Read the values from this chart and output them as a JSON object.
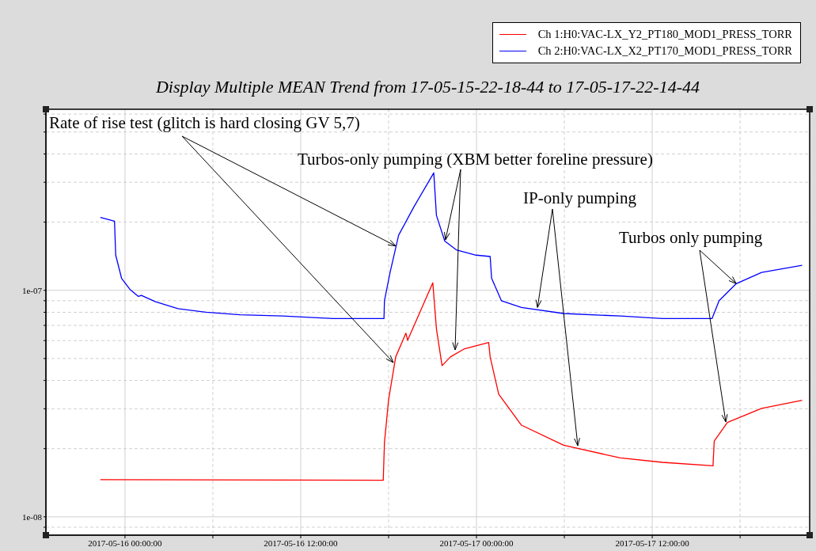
{
  "chart_data": {
    "type": "line",
    "title": "Display Multiple MEAN Trend from 17-05-15-22-18-44 to 17-05-17-22-14-44",
    "annotations": [
      {
        "text": "Rate of rise test (glitch is hard closing GV 5,7)",
        "x": "2017-05-16T18:29",
        "y": 1.57e-07
      },
      {
        "text": "Turbos-only pumping (XBM better foreline pressure)",
        "x": "2017-05-16T21:53",
        "y": 1.67e-07
      },
      {
        "text": "IP-only pumping",
        "x": "2017-05-17T04:10",
        "y": 8.4e-08
      },
      {
        "text": "Turbos only pumping",
        "x": "2017-05-17T17:44",
        "y": 1.07e-07
      }
    ],
    "log": "y",
    "grid": true,
    "legend": "top right",
    "line_style": "solid",
    "marker": "none",
    "xlim": [
      "2017-05-15T18:36",
      "2017-05-17T22:45"
    ],
    "xticks": [
      {
        "value": "2017-05-16T00:00",
        "label": "2017-05-16 00:00:00"
      },
      {
        "value": "2017-05-16T06:00",
        "label": null
      },
      {
        "value": "2017-05-16T12:00",
        "label": "2017-05-16 12:00:00"
      },
      {
        "value": "2017-05-16T18:00",
        "label": null
      },
      {
        "value": "2017-05-17T00:00",
        "label": "2017-05-17 00:00:00"
      },
      {
        "value": "2017-05-17T06:00",
        "label": null
      },
      {
        "value": "2017-05-17T12:00",
        "label": "2017-05-17 12:00:00"
      },
      {
        "value": "2017-05-17T18:00",
        "label": null
      }
    ],
    "ylim": [
      8.3e-09,
      6.3e-07
    ],
    "yticks": [
      {
        "value": 9e-09,
        "label": null
      },
      {
        "value": 1e-08,
        "label": "1e-08"
      },
      {
        "value": 2e-08,
        "label": null
      },
      {
        "value": 3e-08,
        "label": null
      },
      {
        "value": 4e-08,
        "label": null
      },
      {
        "value": 5e-08,
        "label": null
      },
      {
        "value": 6e-08,
        "label": null
      },
      {
        "value": 7e-08,
        "label": null
      },
      {
        "value": 8e-08,
        "label": null
      },
      {
        "value": 9e-08,
        "label": null
      },
      {
        "value": 1e-07,
        "label": "1e-07"
      },
      {
        "value": 2e-07,
        "label": null
      },
      {
        "value": 3e-07,
        "label": null
      },
      {
        "value": 4e-07,
        "label": null
      },
      {
        "value": 5e-07,
        "label": null
      },
      {
        "value": 6e-07,
        "label": null
      }
    ],
    "series": [
      {
        "name": "Ch 1:H0:VAC-LX_Y2_PT180_MOD1_PRESS_TORR",
        "color": "#ff0000",
        "x": [
          "2017-05-15T22:19",
          "2017-05-16T17:38",
          "2017-05-16T17:43",
          "2017-05-16T18:00",
          "2017-05-16T18:29",
          "2017-05-16T19:11",
          "2017-05-16T19:18",
          "2017-05-16T21:01",
          "2017-05-16T21:16",
          "2017-05-16T21:39",
          "2017-05-16T22:13",
          "2017-05-16T23:11",
          "2017-05-17T00:50",
          "2017-05-17T00:56",
          "2017-05-17T01:31",
          "2017-05-17T03:04",
          "2017-05-17T05:57",
          "2017-05-17T09:49",
          "2017-05-17T12:42",
          "2017-05-17T16:09",
          "2017-05-17T16:14",
          "2017-05-17T17:08",
          "2017-05-17T19:28",
          "2017-05-17T22:14"
        ],
        "values": [
          1.46e-08,
          1.45e-08,
          2.13e-08,
          3.29e-08,
          5.08e-08,
          6.47e-08,
          6.02e-08,
          1.08e-07,
          6.75e-08,
          4.65e-08,
          5.08e-08,
          5.52e-08,
          5.88e-08,
          5.08e-08,
          3.48e-08,
          2.54e-08,
          2.07e-08,
          1.82e-08,
          1.74e-08,
          1.68e-08,
          2.16e-08,
          2.61e-08,
          3.01e-08,
          3.27e-08
        ]
      },
      {
        "name": "Ch 2:H0:VAC-LX_X2_PT170_MOD1_PRESS_TORR",
        "color": "#0000ff",
        "x": [
          "2017-05-15T22:19",
          "2017-05-15T23:17",
          "2017-05-15T23:22",
          "2017-05-15T23:46",
          "2017-05-16T00:20",
          "2017-05-16T00:55",
          "2017-05-16T01:07",
          "2017-05-16T02:05",
          "2017-05-16T03:37",
          "2017-05-16T05:33",
          "2017-05-16T07:52",
          "2017-05-16T10:45",
          "2017-05-16T14:13",
          "2017-05-16T17:41",
          "2017-05-16T17:43",
          "2017-05-16T18:06",
          "2017-05-16T18:41",
          "2017-05-16T19:43",
          "2017-05-16T21:05",
          "2017-05-16T21:16",
          "2017-05-16T21:50",
          "2017-05-16T22:37",
          "2017-05-16T23:58",
          "2017-05-17T00:56",
          "2017-05-17T01:02",
          "2017-05-17T01:42",
          "2017-05-17T03:04",
          "2017-05-17T05:57",
          "2017-05-17T09:49",
          "2017-05-17T12:42",
          "2017-05-17T16:05",
          "2017-05-17T16:34",
          "2017-05-17T17:44",
          "2017-05-17T19:28",
          "2017-05-17T22:14"
        ],
        "values": [
          2.1e-07,
          2.02e-07,
          1.43e-07,
          1.13e-07,
          1.01e-07,
          9.4e-08,
          9.5e-08,
          8.9e-08,
          8.3e-08,
          8e-08,
          7.8e-08,
          7.7e-08,
          7.5e-08,
          7.5e-08,
          9e-08,
          1.2e-07,
          1.75e-07,
          2.33e-07,
          3.3e-07,
          2.14e-07,
          1.65e-07,
          1.51e-07,
          1.43e-07,
          1.41e-07,
          1.13e-07,
          9e-08,
          8.4e-08,
          7.9e-08,
          7.7e-08,
          7.5e-08,
          7.5e-08,
          9e-08,
          1.07e-07,
          1.2e-07,
          1.29e-07
        ]
      }
    ]
  }
}
